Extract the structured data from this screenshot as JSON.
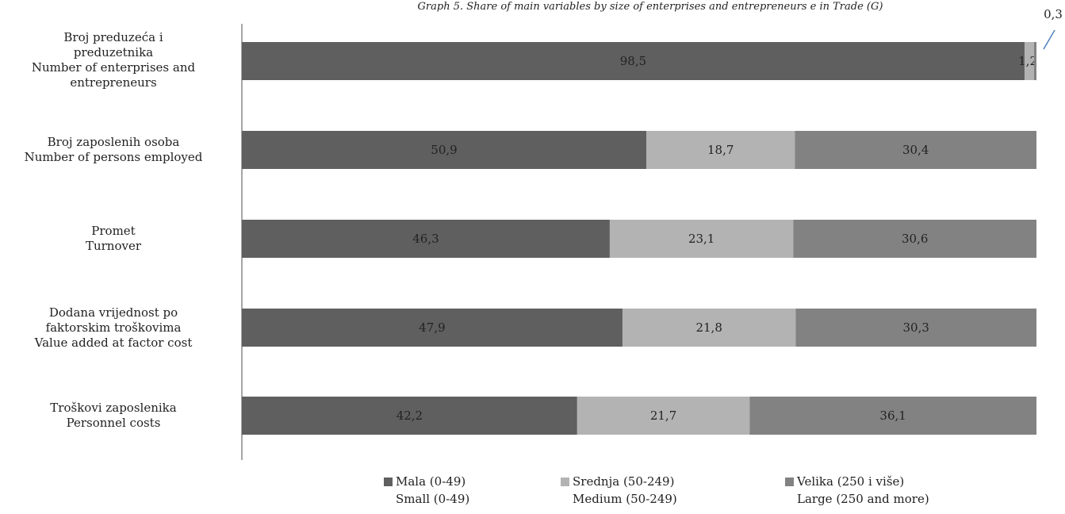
{
  "chart_data": {
    "type": "bar",
    "orientation": "horizontal",
    "stacked": true,
    "title": "Graph 5.  Share of main variables by size of enterprises and entrepreneurs e in Trade (G)",
    "categories": [
      {
        "lines": [
          "Broj preduzeća i",
          "preduzetnika",
          "Number of enterprises and",
          "entrepreneurs"
        ]
      },
      {
        "lines": [
          "Broj zaposlenih osoba",
          "Number of persons employed"
        ]
      },
      {
        "lines": [
          "Promet",
          "Turnover"
        ]
      },
      {
        "lines": [
          "Dodana vrijednost po",
          "faktorskim troškovima",
          "Value added at factor cost"
        ]
      },
      {
        "lines": [
          "Troškovi zaposlenika",
          "Personnel costs"
        ]
      }
    ],
    "series": [
      {
        "name": "Mala (0-49)",
        "name_en": "Small (0-49)",
        "color": "#5f5f5f",
        "values": [
          98.5,
          50.9,
          46.3,
          47.9,
          42.2
        ],
        "labels": [
          "98,5",
          "50,9",
          "46,3",
          "47,9",
          "42,2"
        ]
      },
      {
        "name": "Srednja (50-249)",
        "name_en": "Medium (50-249)",
        "color": "#b3b3b3",
        "values": [
          1.2,
          18.7,
          23.1,
          21.8,
          21.7
        ],
        "labels": [
          "1,2",
          "18,7",
          "23,1",
          "21,8",
          "21,7"
        ]
      },
      {
        "name": "Velika (250 i više)",
        "name_en": "Large (250 and more)",
        "color": "#828282",
        "values": [
          0.3,
          30.4,
          30.6,
          30.3,
          36.1
        ],
        "labels": [
          "0,3",
          "30,4",
          "30,6",
          "30,3",
          "36,1"
        ]
      }
    ],
    "xlim": [
      0,
      100
    ],
    "legend": "bottom",
    "grid": false
  }
}
